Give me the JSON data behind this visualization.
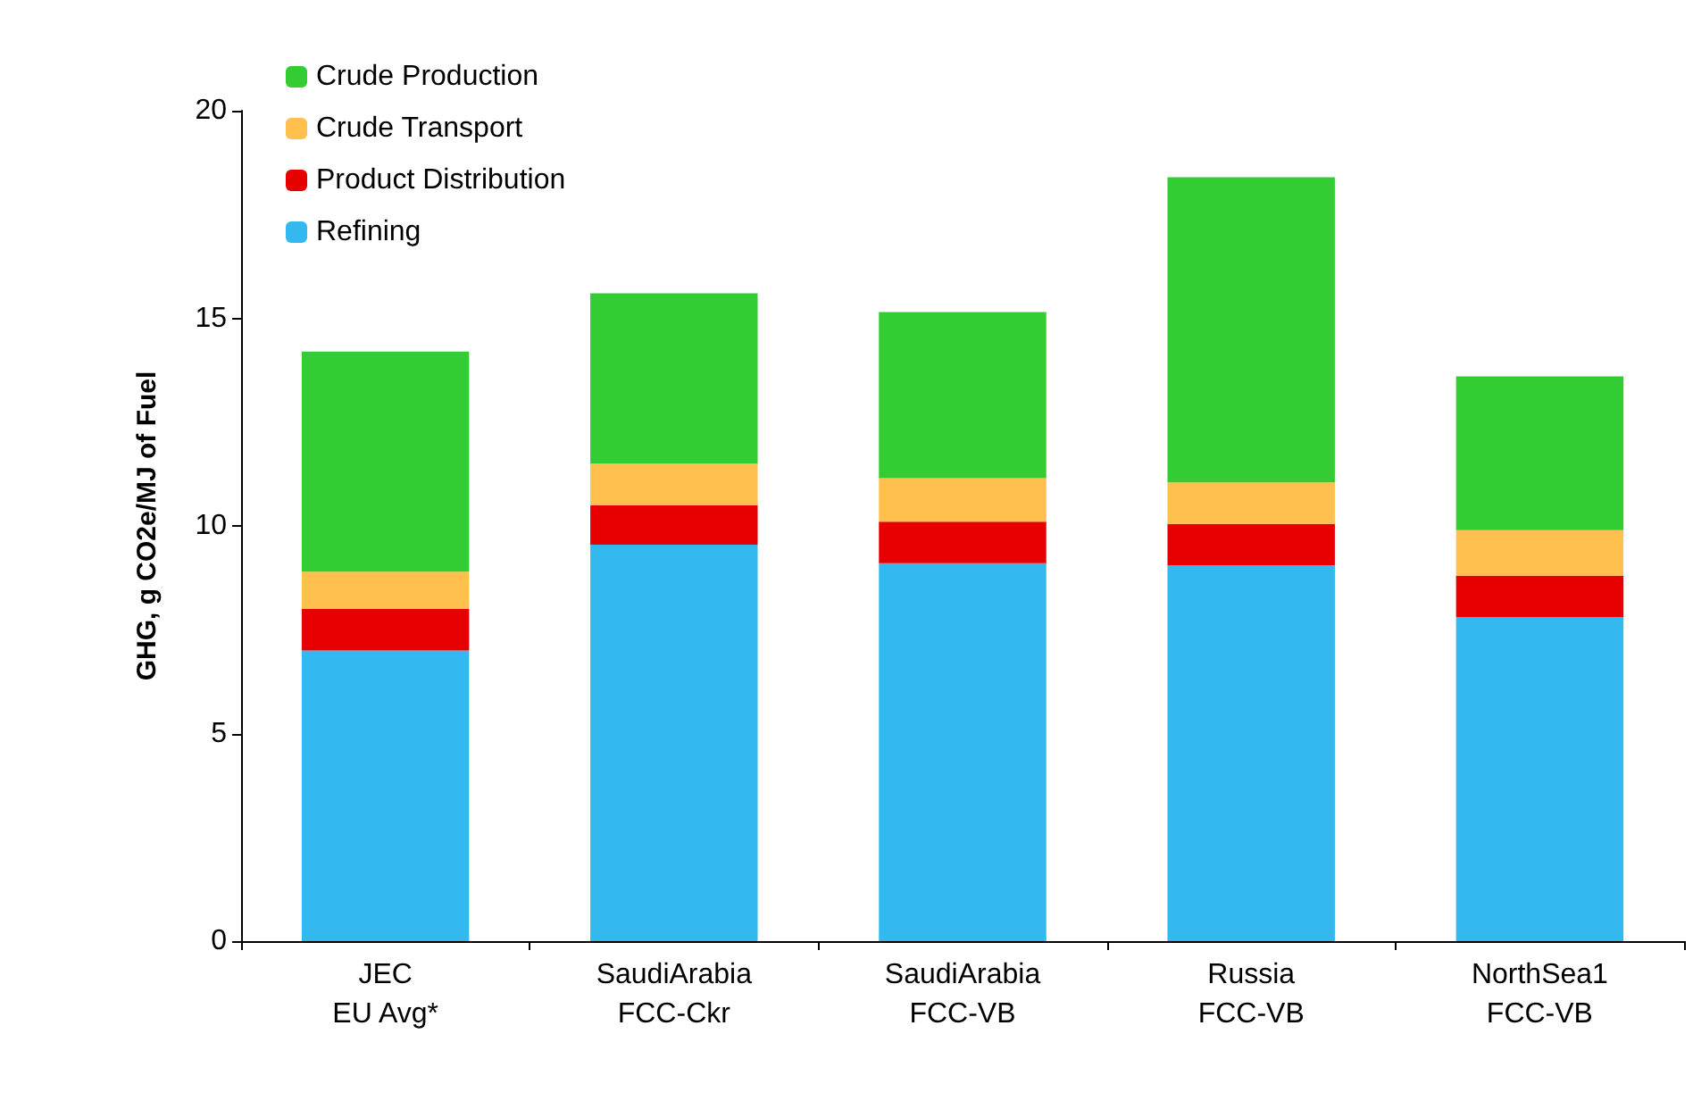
{
  "chart_data": {
    "type": "bar",
    "stacked": true,
    "categories": [
      "JEC\nEU Avg*",
      "SaudiArabia\nFCC-Ckr",
      "SaudiArabia\nFCC-VB",
      "Russia\nFCC-VB",
      "NorthSea1\nFCC-VB"
    ],
    "ylabel": "GHG, g CO2e/MJ of Fuel",
    "ylim": [
      0,
      20
    ],
    "yticks": [
      0,
      5,
      10,
      15,
      20
    ],
    "grid": false,
    "legend": "top left",
    "series": [
      {
        "name": "Refining",
        "color": "#33b8f0",
        "values": [
          7.0,
          9.55,
          9.1,
          9.05,
          7.8
        ]
      },
      {
        "name": "Product Distribution",
        "color": "#e60000",
        "values": [
          1.0,
          0.95,
          1.0,
          1.0,
          1.0
        ]
      },
      {
        "name": "Crude Transport",
        "color": "#ffc04d",
        "values": [
          0.9,
          1.0,
          1.05,
          1.0,
          1.1
        ]
      },
      {
        "name": "Crude Production",
        "color": "#33cc33",
        "values": [
          5.3,
          4.1,
          4.0,
          7.35,
          3.7
        ]
      }
    ]
  }
}
